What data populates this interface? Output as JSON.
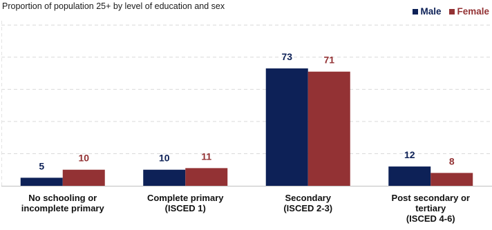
{
  "chart_data": {
    "type": "bar",
    "title": "",
    "subtitle": "Proportion of population 25+ by level of education and sex",
    "xlabel": "",
    "ylabel": "",
    "ylim": [
      0,
      100
    ],
    "grid": true,
    "legend_position": "top-right",
    "categories": [
      [
        "No schooling or",
        "incomplete primary"
      ],
      [
        "Complete primary",
        "(ISCED 1)"
      ],
      [
        "Secondary",
        "(ISCED 2-3)"
      ],
      [
        "Post secondary or",
        "tertiary",
        "(ISCED 4-6)"
      ]
    ],
    "series": [
      {
        "name": "Male",
        "color": "#0d2157",
        "values": [
          5,
          10,
          73,
          12
        ]
      },
      {
        "name": "Female",
        "color": "#933234",
        "values": [
          10,
          11,
          71,
          8
        ]
      }
    ]
  }
}
